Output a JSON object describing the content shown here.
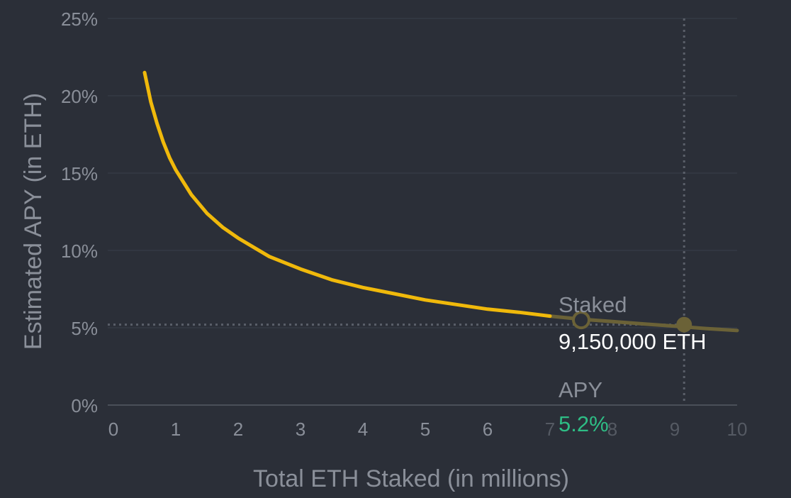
{
  "chart_data": {
    "type": "line",
    "title": "",
    "xlabel": "Total ETH Staked (in millions)",
    "ylabel": "Estimated APY (in ETH)",
    "xlim": [
      0,
      10
    ],
    "ylim": [
      0,
      25
    ],
    "x_ticks": [
      "0",
      "1",
      "2",
      "3",
      "4",
      "5",
      "6",
      "7",
      "8",
      "9",
      "10"
    ],
    "y_ticks": [
      "0%",
      "5%",
      "10%",
      "15%",
      "20%",
      "25%"
    ],
    "grid": true,
    "series": [
      {
        "color": "#f0b90b",
        "x": [
          0.5,
          0.6,
          0.7,
          0.8,
          0.9,
          1.0,
          1.25,
          1.5,
          1.75,
          2.0,
          2.5,
          3.0,
          3.5,
          4.0,
          4.5,
          5.0,
          5.5,
          6.0,
          6.5,
          7.0,
          7.5,
          8.0,
          8.5,
          9.0,
          9.5,
          10.0
        ],
        "y": [
          21.5,
          19.6,
          18.2,
          17.0,
          16.0,
          15.2,
          13.6,
          12.4,
          11.5,
          10.8,
          9.6,
          8.8,
          8.1,
          7.6,
          7.2,
          6.8,
          6.5,
          6.2,
          6.0,
          5.75,
          5.55,
          5.4,
          5.25,
          5.1,
          4.95,
          4.82
        ]
      }
    ],
    "highlight": {
      "x": 9.15,
      "y": 5.2
    },
    "hover": {
      "x": 7.5,
      "y": 5.5
    },
    "tooltip": {
      "staked_label": "Staked",
      "staked_value": "9,150,000 ETH",
      "apy_label": "APY",
      "apy_value": "5.2%"
    },
    "colors": {
      "background": "#2b2f38",
      "line": "#f0b90b",
      "line_dimmed": "#6b6237",
      "axis_text": "#8a8f99",
      "grid": "#353a44",
      "apy_value": "#2ebd85",
      "tooltip_value": "#ffffff"
    }
  }
}
